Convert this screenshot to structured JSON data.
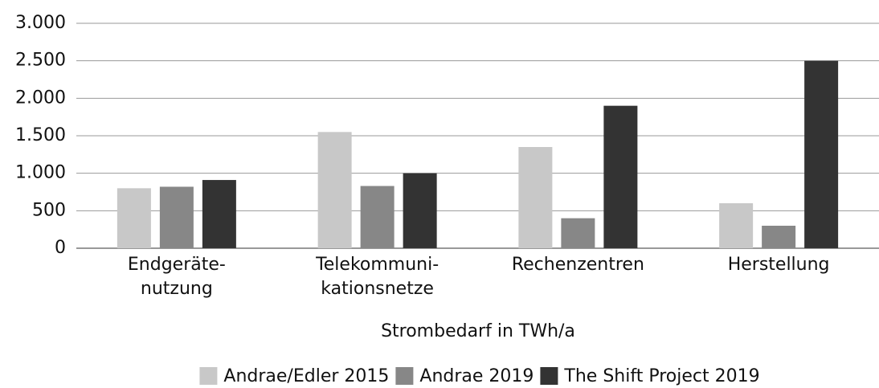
{
  "chart_data": {
    "type": "bar",
    "categories": [
      [
        "Endgeräte-",
        "nutzung"
      ],
      [
        "Telekommuni-",
        "kationsnetze"
      ],
      [
        "Rechenzentren"
      ],
      [
        "Herstellung"
      ]
    ],
    "series": [
      {
        "name": "Andrae/Edler 2015",
        "color": "#c8c8c8",
        "values": [
          800,
          1550,
          1350,
          600
        ]
      },
      {
        "name": "Andrae 2019",
        "color": "#878787",
        "values": [
          820,
          830,
          400,
          300
        ]
      },
      {
        "name": "The Shift Project 2019",
        "color": "#333333",
        "values": [
          910,
          1000,
          1900,
          2500
        ]
      }
    ],
    "x_label": "Strombedarf in TWh/a",
    "ylim": [
      0,
      3000
    ],
    "yticks": [
      0,
      500,
      {
        "value": 1000,
        "label": "1.000"
      },
      {
        "value": 1500,
        "label": "1.500"
      },
      {
        "value": 2000,
        "label": "2.000"
      },
      {
        "value": 2500,
        "label": "2.500"
      },
      {
        "value": 3000,
        "label": "3.000"
      }
    ],
    "grid": true,
    "legend": "bottom"
  }
}
